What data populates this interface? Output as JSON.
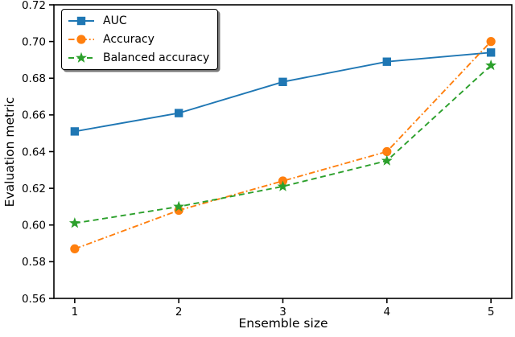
{
  "chart_data": {
    "type": "line",
    "title": "",
    "xlabel": "Ensemble size",
    "ylabel": "Evaluation metric",
    "x": [
      1,
      2,
      3,
      4,
      5
    ],
    "series": [
      {
        "name": "AUC",
        "values": [
          0.651,
          0.661,
          0.678,
          0.689,
          0.694
        ],
        "color": "#1f77b4",
        "line_style": "solid",
        "marker": "square"
      },
      {
        "name": "Accuracy",
        "values": [
          0.587,
          0.608,
          0.624,
          0.64,
          0.7
        ],
        "color": "#ff7f0e",
        "line_style": "dashdot",
        "marker": "circle"
      },
      {
        "name": "Balanced accuracy",
        "values": [
          0.601,
          0.61,
          0.621,
          0.635,
          0.687
        ],
        "color": "#2ca02c",
        "line_style": "dashed",
        "marker": "star"
      }
    ],
    "xlim": [
      0.8,
      5.2
    ],
    "ylim": [
      0.56,
      0.72
    ],
    "xticks": [
      1,
      2,
      3,
      4,
      5
    ],
    "yticks": [
      0.56,
      0.58,
      0.6,
      0.62,
      0.64,
      0.66,
      0.68,
      0.7,
      0.72
    ],
    "ytick_format_decimals": 2,
    "grid": false,
    "legend_position": "upper left",
    "axis_color": "#000000",
    "background_color": "#ffffff"
  }
}
